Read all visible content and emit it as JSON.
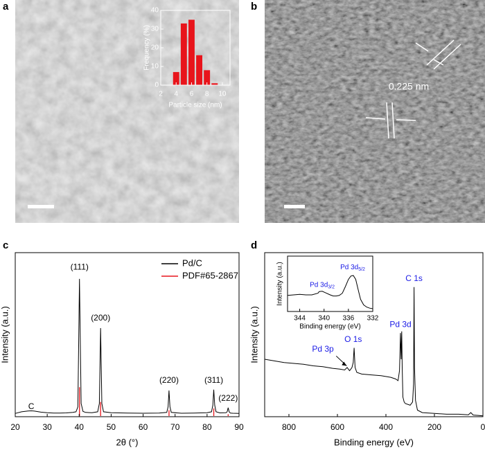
{
  "panel_labels": [
    "a",
    "b",
    "c",
    "d"
  ],
  "lattice_label": "0.225 nm",
  "chart_data": [
    {
      "type": "histogram",
      "xlabel": "Particle size (nm)",
      "ylabel": "Frequency (%)",
      "bins": [
        3.5,
        4.5,
        5.5,
        6.5,
        7.5,
        8.5,
        9.5
      ],
      "values": [
        7,
        33,
        35,
        16,
        8,
        1
      ],
      "color": "#e8141b",
      "xlim": [
        2,
        11
      ],
      "xticks": [
        2,
        4,
        6,
        8,
        10
      ],
      "ylim": [
        0,
        40
      ],
      "yticks": [
        0,
        10,
        20,
        30,
        40
      ]
    },
    {
      "type": "line",
      "xlabel": "2θ (°)",
      "ylabel": "Intensity (a.u.)",
      "xlim": [
        20,
        90
      ],
      "xticks": [
        20,
        30,
        40,
        50,
        60,
        70,
        80,
        90
      ],
      "ylim": [
        0,
        100
      ],
      "legend": "upper right",
      "annotations": [
        "(111)",
        "(200)",
        "(220)",
        "(311)",
        "(222)",
        "C"
      ],
      "x": [
        20,
        22,
        24,
        25,
        26,
        28,
        30,
        32,
        34,
        36,
        38,
        39,
        39.6,
        40.1,
        40.6,
        41.2,
        42,
        44,
        45.8,
        46.3,
        46.7,
        47.1,
        47.6,
        50,
        55,
        60,
        65,
        67.4,
        67.8,
        68.1,
        68.4,
        68.8,
        72,
        76,
        80,
        81.4,
        81.8,
        82.1,
        82.4,
        82.8,
        84,
        85.9,
        86.3,
        86.6,
        86.9,
        87.3,
        88,
        90
      ],
      "series": [
        {
          "name": "Pd/C",
          "color": "#000000",
          "values": [
            2,
            3,
            3.5,
            3.6,
            3.4,
            2.8,
            2.4,
            2.2,
            2.2,
            2.3,
            2.6,
            3,
            6,
            84,
            8,
            3.2,
            2.6,
            2.4,
            3,
            8,
            54,
            8,
            3,
            2.4,
            2.2,
            2.1,
            2.2,
            2.6,
            6,
            16,
            6,
            2.6,
            2.1,
            2.2,
            2.4,
            3,
            7,
            16.5,
            7,
            3,
            2.3,
            2.4,
            3,
            5.5,
            3,
            2.2,
            2.1,
            2
          ]
        },
        {
          "name": "PDF#65-2867",
          "color": "#e8141b",
          "style": "stick",
          "x": [
            40.1,
            46.7,
            68.1,
            82.1,
            86.6
          ],
          "values": [
            18,
            9,
            4,
            5,
            1.5
          ]
        }
      ]
    },
    {
      "type": "line",
      "xlabel": "Binding energy (eV)",
      "ylabel": "Intensity (a.u.)",
      "xlim": [
        900,
        0
      ],
      "xticks": [
        800,
        600,
        400,
        200,
        0
      ],
      "ylim": [
        0,
        100
      ],
      "annotations": [
        "Pd 3p",
        "O 1s",
        "Pd 3d",
        "C 1s"
      ],
      "annotation_color": "#1a1ae6",
      "x": [
        900,
        860,
        820,
        780,
        740,
        700,
        660,
        620,
        590,
        570,
        560,
        550,
        545,
        540,
        535,
        531,
        527,
        520,
        500,
        460,
        420,
        380,
        360,
        350,
        344,
        340,
        337,
        335,
        333,
        330,
        325,
        320,
        300,
        290,
        286,
        284,
        282,
        278,
        270,
        250,
        200,
        150,
        100,
        60,
        50,
        40,
        20,
        0
      ],
      "series": [
        {
          "color": "#000000",
          "values": [
            35,
            34,
            33,
            32.5,
            32,
            31,
            30.5,
            29.5,
            29,
            28.5,
            30,
            28,
            29,
            30,
            33,
            42,
            30,
            27,
            26,
            25.5,
            25,
            24,
            23,
            22,
            28,
            51,
            35,
            52,
            30,
            12,
            9,
            8,
            7,
            9,
            20,
            79,
            30,
            10,
            4,
            2.5,
            2,
            1.5,
            1.5,
            1.2,
            2.5,
            1,
            0.8,
            0.5
          ]
        }
      ]
    },
    {
      "type": "line",
      "xlabel": "Binding energy (eV)",
      "ylabel": "Intensity (a.u.)",
      "xlim": [
        346,
        332
      ],
      "xticks": [
        344,
        340,
        336,
        332
      ],
      "ylim": [
        0,
        100
      ],
      "annotations": [
        {
          "text": "Pd 3d",
          "sub": "3/2"
        },
        {
          "text": "Pd 3d",
          "sub": "5/2"
        }
      ],
      "annotation_color": "#1a1ae6",
      "x": [
        346,
        345,
        344,
        343,
        342,
        341,
        340.8,
        340.3,
        339.8,
        339,
        338.5,
        338,
        337.5,
        337,
        336.5,
        336,
        335.6,
        335.2,
        334.8,
        334.3,
        334,
        333.5,
        333,
        332.5,
        332
      ],
      "series": [
        {
          "color": "#000000",
          "values": [
            29,
            30,
            31,
            30,
            30,
            33,
            36,
            36.5,
            34,
            30,
            28,
            28,
            29,
            33,
            45,
            58,
            64,
            65,
            58,
            35,
            22,
            12,
            8,
            6,
            5
          ]
        }
      ]
    }
  ]
}
